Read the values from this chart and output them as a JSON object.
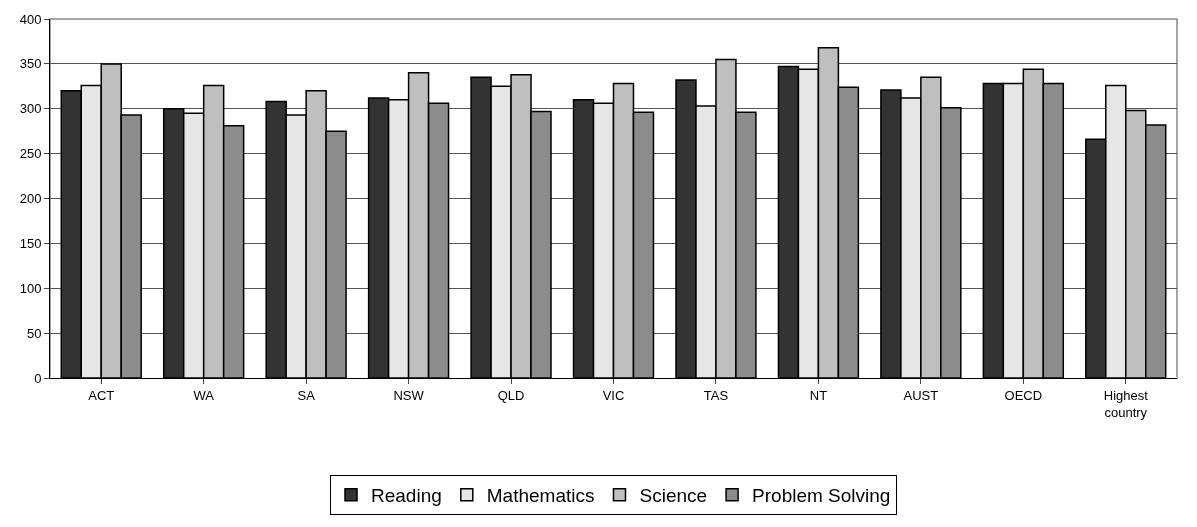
{
  "chart_data": {
    "type": "bar",
    "categories": [
      "ACT",
      "WA",
      "SA",
      "NSW",
      "QLD",
      "VIC",
      "TAS",
      "NT",
      "AUST",
      "OECD",
      "Highest country"
    ],
    "series": [
      {
        "name": "Reading",
        "color": "#333333",
        "values": [
          320,
          300,
          308,
          312,
          335,
          310,
          332,
          347,
          321,
          328,
          266
        ]
      },
      {
        "name": "Mathematics",
        "color": "#e6e6e6",
        "values": [
          326,
          295,
          293,
          310,
          325,
          306,
          303,
          344,
          312,
          328,
          326
        ]
      },
      {
        "name": "Science",
        "color": "#bfbfbf",
        "values": [
          350,
          326,
          320,
          340,
          338,
          328,
          355,
          368,
          335,
          344,
          298
        ]
      },
      {
        "name": "Problem Solving",
        "color": "#8c8c8c",
        "values": [
          293,
          281,
          275,
          306,
          297,
          296,
          296,
          324,
          301,
          328,
          282
        ]
      }
    ],
    "ylim": [
      0,
      400
    ],
    "yticks": [
      0,
      50,
      100,
      150,
      200,
      250,
      300,
      350,
      400
    ],
    "grid": "y",
    "legend": "bottom"
  }
}
